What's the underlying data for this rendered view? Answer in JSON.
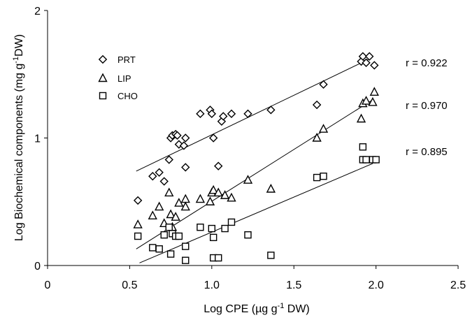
{
  "chart_data": {
    "type": "scatter",
    "xlabel_parts": [
      "Log CPE (",
      "µ",
      "g g",
      "-1",
      " DW)"
    ],
    "ylabel_parts": [
      "Log Biochemical components (mg g",
      "-1",
      "DW)"
    ],
    "xlim": [
      0,
      2.5
    ],
    "ylim": [
      0,
      2
    ],
    "xticks": [
      0,
      0.5,
      1.0,
      1.5,
      2.0,
      2.5
    ],
    "xtick_labels": [
      "0",
      "0.5",
      "1.0",
      "1.5",
      "2.0",
      "2.5"
    ],
    "yticks": [
      0,
      1,
      2
    ],
    "ytick_labels": [
      "0",
      "1",
      "2"
    ],
    "grid": false,
    "legend_position": "top-left",
    "series": [
      {
        "name": "PRT",
        "marker": "diamond",
        "r_label": "r  = 0.922",
        "fit": [
          [
            0.54,
            0.74
          ],
          [
            1.96,
            1.62
          ]
        ],
        "points": [
          [
            0.55,
            0.51
          ],
          [
            0.64,
            0.7
          ],
          [
            0.68,
            0.73
          ],
          [
            0.71,
            0.66
          ],
          [
            0.74,
            0.83
          ],
          [
            0.75,
            1.0
          ],
          [
            0.76,
            1.02
          ],
          [
            0.78,
            1.03
          ],
          [
            0.79,
            1.02
          ],
          [
            0.8,
            0.95
          ],
          [
            0.83,
            0.94
          ],
          [
            0.84,
            1.0
          ],
          [
            0.84,
            0.77
          ],
          [
            0.93,
            1.19
          ],
          [
            0.99,
            1.22
          ],
          [
            1.0,
            1.19
          ],
          [
            1.01,
            1.0
          ],
          [
            1.04,
            0.78
          ],
          [
            1.06,
            1.13
          ],
          [
            1.07,
            1.17
          ],
          [
            1.12,
            1.19
          ],
          [
            1.22,
            1.19
          ],
          [
            1.36,
            1.22
          ],
          [
            1.64,
            1.26
          ],
          [
            1.68,
            1.42
          ],
          [
            1.91,
            1.6
          ],
          [
            1.92,
            1.64
          ],
          [
            1.94,
            1.59
          ],
          [
            1.96,
            1.64
          ],
          [
            1.99,
            1.57
          ]
        ]
      },
      {
        "name": "LIP",
        "marker": "triangle",
        "r_label": "r  = 0.970",
        "fit": [
          [
            0.54,
            0.13
          ],
          [
            1.98,
            1.3
          ]
        ],
        "points": [
          [
            0.55,
            0.32
          ],
          [
            0.64,
            0.39
          ],
          [
            0.68,
            0.46
          ],
          [
            0.71,
            0.33
          ],
          [
            0.74,
            0.57
          ],
          [
            0.75,
            0.4
          ],
          [
            0.76,
            0.3
          ],
          [
            0.78,
            0.38
          ],
          [
            0.8,
            0.49
          ],
          [
            0.84,
            0.52
          ],
          [
            0.84,
            0.46
          ],
          [
            0.93,
            0.52
          ],
          [
            0.99,
            0.5
          ],
          [
            1.0,
            0.57
          ],
          [
            1.01,
            0.59
          ],
          [
            1.04,
            0.57
          ],
          [
            1.08,
            0.55
          ],
          [
            1.12,
            0.53
          ],
          [
            1.22,
            0.67
          ],
          [
            1.36,
            0.6
          ],
          [
            1.64,
            1.0
          ],
          [
            1.68,
            1.07
          ],
          [
            1.91,
            1.15
          ],
          [
            1.92,
            1.27
          ],
          [
            1.94,
            1.29
          ],
          [
            1.98,
            1.28
          ],
          [
            1.99,
            1.36
          ]
        ]
      },
      {
        "name": "CHO",
        "marker": "square",
        "r_label": "r  = 0.895",
        "fit": [
          [
            0.56,
            0.02
          ],
          [
            1.98,
            0.8
          ]
        ],
        "points": [
          [
            0.55,
            0.23
          ],
          [
            0.64,
            0.14
          ],
          [
            0.68,
            0.13
          ],
          [
            0.71,
            0.24
          ],
          [
            0.74,
            0.3
          ],
          [
            0.75,
            0.09
          ],
          [
            0.76,
            0.25
          ],
          [
            0.78,
            0.23
          ],
          [
            0.8,
            0.23
          ],
          [
            0.84,
            0.15
          ],
          [
            0.84,
            0.04
          ],
          [
            0.93,
            0.3
          ],
          [
            1.0,
            0.29
          ],
          [
            1.01,
            0.22
          ],
          [
            1.01,
            0.06
          ],
          [
            1.04,
            0.06
          ],
          [
            1.08,
            0.29
          ],
          [
            1.12,
            0.34
          ],
          [
            1.22,
            0.24
          ],
          [
            1.36,
            0.08
          ],
          [
            1.64,
            0.69
          ],
          [
            1.68,
            0.7
          ],
          [
            1.92,
            0.93
          ],
          [
            1.92,
            0.83
          ],
          [
            1.94,
            0.83
          ],
          [
            1.98,
            0.83
          ],
          [
            2.0,
            0.83
          ]
        ]
      }
    ]
  }
}
